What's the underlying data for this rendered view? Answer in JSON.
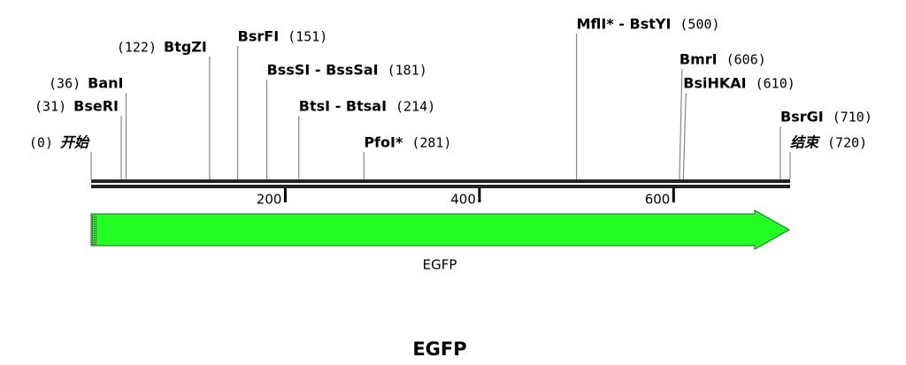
{
  "map": {
    "xlim": [
      0,
      720
    ],
    "ticks": [
      200,
      400,
      600
    ],
    "sites": [
      {
        "name": "开始",
        "position": {
          "value": 0,
          "label": "(0)"
        }
      },
      {
        "name": "BseRI",
        "position": {
          "value": 31,
          "label": "(31)"
        }
      },
      {
        "name": "BanI",
        "position": {
          "value": 36,
          "label": "(36)"
        }
      },
      {
        "name": "BtgZI",
        "position": {
          "value": 122,
          "label": "(122)"
        }
      },
      {
        "name": "BsrFI",
        "position": {
          "value": 151,
          "label": "(151)"
        }
      },
      {
        "name": "BssSI - BssSaI",
        "position": {
          "value": 181,
          "label": "(181)"
        }
      },
      {
        "name": "BtsI - BtsaI",
        "position": {
          "value": 214,
          "label": "(214)"
        }
      },
      {
        "name": "PfoI*",
        "position": {
          "value": 281,
          "label": "(281)"
        }
      },
      {
        "name": "MflI* - BstYI",
        "position": {
          "value": 500,
          "label": "(500)"
        }
      },
      {
        "name": "BmrI",
        "position": {
          "value": 606,
          "label": "(606)"
        }
      },
      {
        "name": "BsiHKAI",
        "position": {
          "value": 610,
          "label": "(610)"
        }
      },
      {
        "name": "BsrGI",
        "position": {
          "value": 710,
          "label": "(710)"
        }
      },
      {
        "name": "结束",
        "position": {
          "value": 720,
          "label": "(720)"
        }
      }
    ],
    "feature": {
      "name": "EGFP"
    },
    "title": "EGFP"
  }
}
